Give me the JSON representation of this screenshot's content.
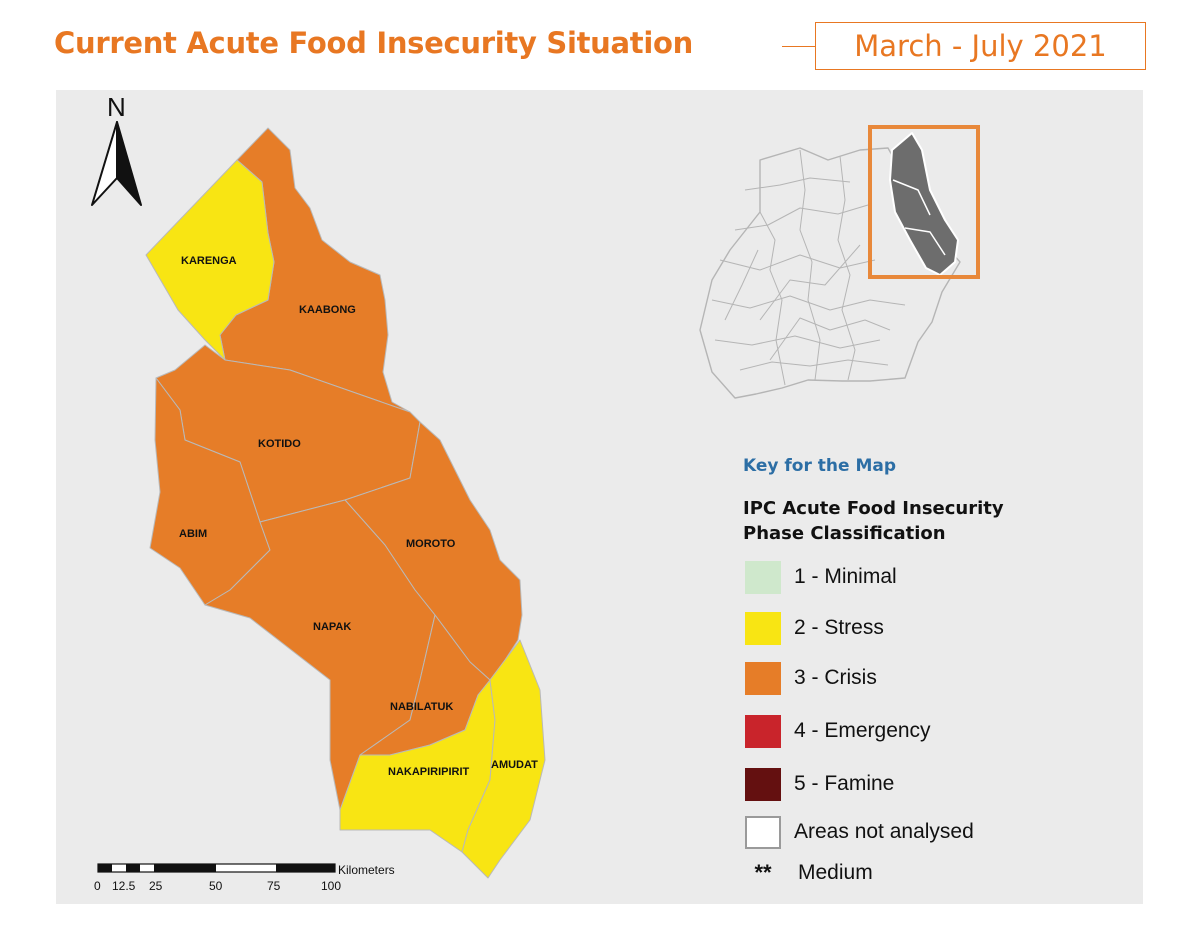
{
  "title": "Current Acute Food Insecurity Situation",
  "period": "March - July 2021",
  "north_label": "N",
  "colors": {
    "minimal": "#cfe8cc",
    "stress": "#f8e513",
    "crisis": "#e67d28",
    "emergency": "#c9242b",
    "famine": "#641010",
    "not_analysed": "#ffffff",
    "accent": "#e87722",
    "map_background": "#ebebeb"
  },
  "districts": [
    {
      "name": "KARENGA",
      "phase": 2
    },
    {
      "name": "KAABONG",
      "phase": 3
    },
    {
      "name": "KOTIDO",
      "phase": 3
    },
    {
      "name": "ABIM",
      "phase": 3
    },
    {
      "name": "MOROTO",
      "phase": 3
    },
    {
      "name": "NAPAK",
      "phase": 3
    },
    {
      "name": "NABILATUK",
      "phase": 3
    },
    {
      "name": "NAKAPIRIPIRIT",
      "phase": 2
    },
    {
      "name": "AMUDAT",
      "phase": 2
    }
  ],
  "legend": {
    "heading": "Key for the Map",
    "subtitle_line1": "IPC Acute Food Insecurity",
    "subtitle_line2": "Phase Classification",
    "items": [
      {
        "label": "1 - Minimal",
        "color": "#cfe8cc"
      },
      {
        "label": "2 - Stress",
        "color": "#f8e513"
      },
      {
        "label": "3 - Crisis",
        "color": "#e67d28"
      },
      {
        "label": "4 - Emergency",
        "color": "#c9242b"
      },
      {
        "label": "5 - Famine",
        "color": "#641010"
      },
      {
        "label": "Areas not analysed",
        "color": "#ffffff"
      }
    ],
    "confidence_symbol": "**",
    "confidence_label": "Medium"
  },
  "scale_bar": {
    "unit": "Kilometers",
    "ticks": [
      "0",
      "12.5",
      "25",
      "50",
      "75",
      "100"
    ]
  }
}
